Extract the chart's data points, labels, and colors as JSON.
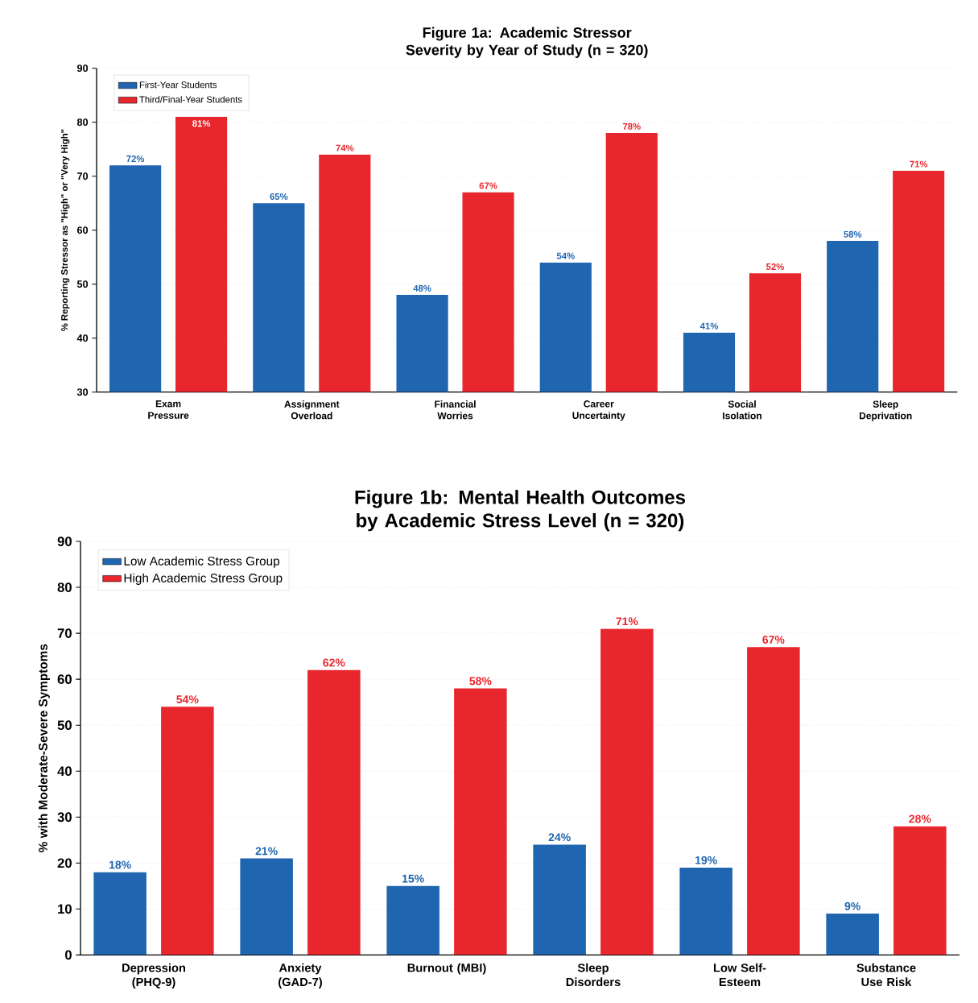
{
  "chart_data": [
    {
      "type": "bar",
      "title": "Figure 1a: Academic Stressor Severity by Year of Study (n = 320)",
      "ylabel": "% Reporting Stressor as \"High\" or \"Very High\"",
      "categories": [
        "Exam Pressure",
        "Assignment Overload",
        "Financial Worries",
        "Career Uncertainty",
        "Social Isolation",
        "Sleep Deprivation"
      ],
      "series": [
        {
          "name": "First-Year Students",
          "color": "#1f65b0",
          "values": [
            72,
            65,
            48,
            54,
            41,
            58
          ],
          "value_labels": [
            "72%",
            "65%",
            "48%",
            "54%",
            "41%",
            "58%"
          ]
        },
        {
          "name": "Third/Final-Year Students",
          "color": "#e8262d",
          "values": [
            81,
            74,
            67,
            78,
            52,
            71
          ],
          "value_labels": [
            "81%",
            "74%",
            "67%",
            "78%",
            "52%",
            "71%"
          ]
        }
      ],
      "ylim": [
        30,
        90
      ],
      "yticks": [
        30,
        40,
        50,
        60,
        70,
        80,
        90
      ],
      "grid": "y",
      "legend": "top left"
    },
    {
      "type": "bar",
      "title": "Figure 1b: Mental Health Outcomes by Academic Stress Level (n = 320)",
      "ylabel": "% with Moderate-Severe Symptoms",
      "categories": [
        "Depression (PHQ-9)",
        "Anxiety (GAD-7)",
        "Burnout (MBI)",
        "Sleep Disorders",
        "Low Self-Esteem",
        "Substance Use Risk"
      ],
      "series": [
        {
          "name": "Low Academic Stress Group",
          "color": "#1f65b0",
          "values": [
            18,
            21,
            15,
            24,
            19,
            9
          ],
          "value_labels": [
            "18%",
            "21%",
            "15%",
            "24%",
            "19%",
            "9%"
          ]
        },
        {
          "name": "High Academic Stress Group",
          "color": "#e8262d",
          "values": [
            54,
            62,
            58,
            71,
            67,
            28
          ],
          "value_labels": [
            "54%",
            "62%",
            "58%",
            "71%",
            "67%",
            "28%"
          ]
        }
      ],
      "ylim": [
        0,
        90
      ],
      "yticks": [
        0,
        10,
        20,
        30,
        40,
        50,
        60,
        70,
        80,
        90
      ],
      "grid": "y",
      "legend": "top left"
    }
  ]
}
